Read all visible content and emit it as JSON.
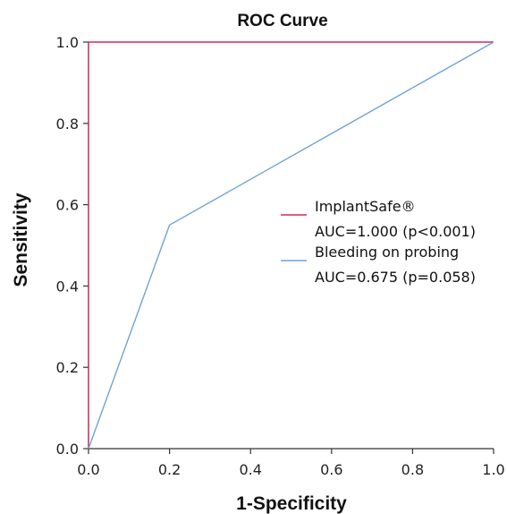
{
  "chart_data": {
    "type": "line",
    "title": "ROC Curve",
    "xlabel": "1-Specificity",
    "ylabel": "Sensitivity",
    "xlim": [
      0,
      1
    ],
    "ylim": [
      0,
      1
    ],
    "xticks": [
      0.0,
      0.2,
      0.4,
      0.6,
      0.8,
      1.0
    ],
    "yticks": [
      0.0,
      0.2,
      0.4,
      0.6,
      0.8,
      1.0
    ],
    "xtick_labels": [
      "0.0",
      "0.2",
      "0.4",
      "0.6",
      "0.8",
      "1.0"
    ],
    "ytick_labels": [
      "0.0",
      "0.2",
      "0.4",
      "0.6",
      "0.8",
      "1.0"
    ],
    "grid": false,
    "legend_position": "right",
    "series": [
      {
        "name": "ImplantSafe®",
        "auc_label": "AUC=1.000 (p<0.001)",
        "color": "#d62a5a",
        "points": [
          [
            0,
            0
          ],
          [
            0,
            1
          ],
          [
            1,
            1
          ]
        ]
      },
      {
        "name": "Bleeding on probing",
        "auc_label": "AUC=0.675 (p=0.058)",
        "color": "#6fa3d9",
        "points": [
          [
            0,
            0
          ],
          [
            0.2,
            0.55
          ],
          [
            1,
            1
          ]
        ]
      }
    ]
  }
}
